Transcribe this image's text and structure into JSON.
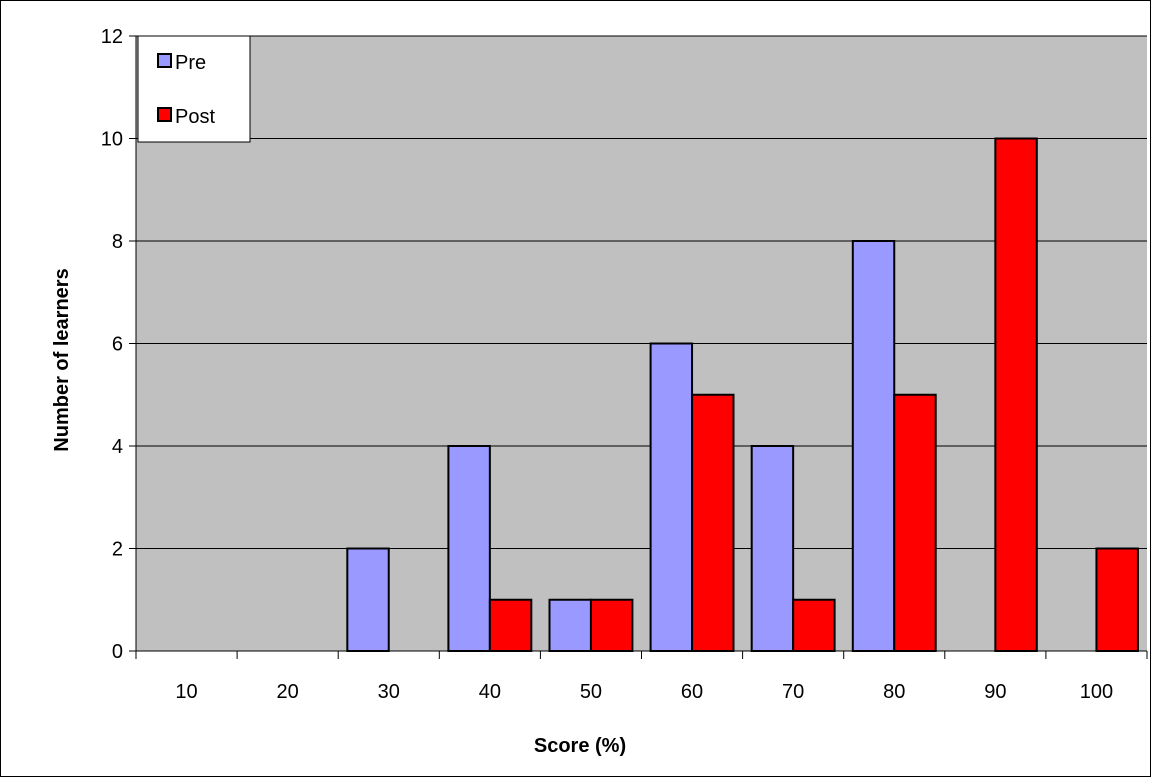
{
  "chart_data": {
    "type": "bar",
    "xlabel": "Score (%)",
    "ylabel": "Number of learners",
    "categories": [
      "10",
      "20",
      "30",
      "40",
      "50",
      "60",
      "70",
      "80",
      "90",
      "100"
    ],
    "series": [
      {
        "name": "Pre",
        "color": "#9999ff",
        "values": [
          0,
          0,
          2,
          4,
          1,
          6,
          4,
          8,
          0,
          0
        ]
      },
      {
        "name": "Post",
        "color": "#ff0000",
        "values": [
          0,
          0,
          0,
          1,
          1,
          5,
          1,
          5,
          10,
          2
        ]
      }
    ],
    "ylim": [
      0,
      12
    ],
    "yticks": [
      "0",
      "2",
      "4",
      "6",
      "8",
      "10",
      "12"
    ],
    "grid": true,
    "plot_background": "#c0c0c0",
    "legend": "top-left"
  }
}
